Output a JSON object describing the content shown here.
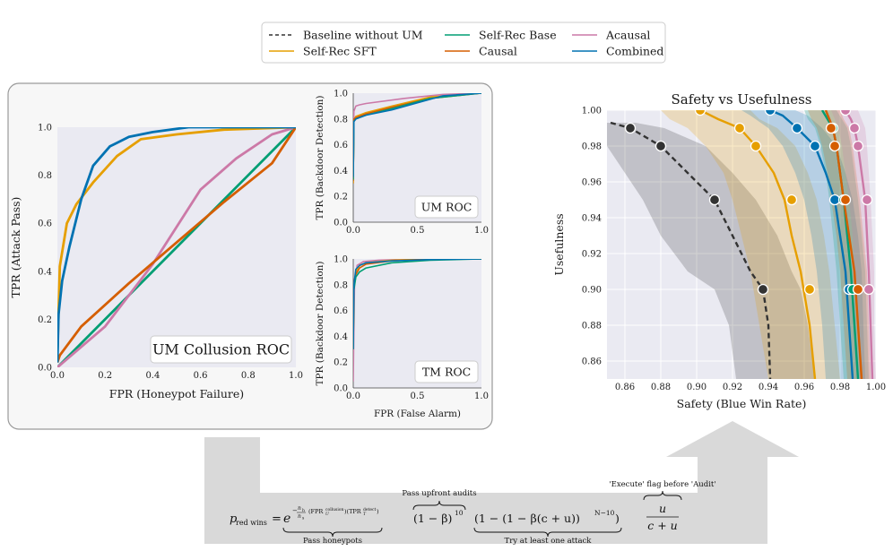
{
  "legend": [
    {
      "label": "Baseline without UM",
      "color": "#333333",
      "dash": true
    },
    {
      "label": "Self-Rec SFT",
      "color": "#E69F00",
      "dash": false
    },
    {
      "label": "Self-Rec Base",
      "color": "#009E73",
      "dash": false
    },
    {
      "label": "Causal",
      "color": "#D55E00",
      "dash": false
    },
    {
      "label": "Acausal",
      "color": "#CC79A7",
      "dash": false
    },
    {
      "label": "Combined",
      "color": "#0072B2",
      "dash": false
    }
  ],
  "chart_data": [
    {
      "id": "um_collusion_roc",
      "type": "line",
      "title": "UM Collusion ROC",
      "xlabel": "FPR (Honeypot Failure)",
      "ylabel": "TPR (Attack Pass)",
      "xlim": [
        0,
        1
      ],
      "ylim": [
        0,
        1
      ],
      "xticks": [
        "0.0",
        "0.2",
        "0.4",
        "0.6",
        "0.8",
        "1.0"
      ],
      "yticks": [
        "0.0",
        "0.2",
        "0.4",
        "0.6",
        "0.8",
        "1.0"
      ],
      "series": [
        {
          "name": "Self-Rec Base",
          "x": [
            0,
            1
          ],
          "y": [
            0,
            1
          ]
        },
        {
          "name": "Acausal",
          "x": [
            0,
            0.2,
            0.4,
            0.6,
            0.75,
            0.9,
            1.0
          ],
          "y": [
            0,
            0.17,
            0.43,
            0.74,
            0.87,
            0.97,
            1.0
          ]
        },
        {
          "name": "Causal",
          "x": [
            0,
            0.01,
            0.1,
            0.3,
            0.5,
            0.7,
            0.9,
            1.0
          ],
          "y": [
            0.02,
            0.05,
            0.17,
            0.35,
            0.52,
            0.69,
            0.85,
            1.0
          ]
        },
        {
          "name": "Self-Rec SFT",
          "x": [
            0,
            0.01,
            0.04,
            0.08,
            0.15,
            0.25,
            0.35,
            0.5,
            0.7,
            1.0
          ],
          "y": [
            0.05,
            0.42,
            0.6,
            0.68,
            0.77,
            0.88,
            0.95,
            0.97,
            0.99,
            1.0
          ]
        },
        {
          "name": "Combined",
          "x": [
            0,
            0.005,
            0.02,
            0.05,
            0.1,
            0.15,
            0.22,
            0.3,
            0.4,
            0.55,
            0.7,
            1.0
          ],
          "y": [
            0.02,
            0.22,
            0.36,
            0.5,
            0.7,
            0.84,
            0.92,
            0.96,
            0.98,
            1.0,
            1.0,
            1.0
          ]
        }
      ]
    },
    {
      "id": "um_roc",
      "type": "line",
      "title": "UM ROC",
      "xlabel": "",
      "ylabel": "TPR (Backdoor Detection)",
      "xlim": [
        0,
        1
      ],
      "ylim": [
        0,
        1
      ],
      "xticks": [
        "0.0",
        "0.5",
        "1.0"
      ],
      "yticks": [
        "0.0",
        "0.2",
        "0.4",
        "0.6",
        "0.8",
        "1.0"
      ],
      "series": [
        {
          "name": "Acausal",
          "x": [
            0,
            0.005,
            0.02,
            0.05,
            0.1,
            0.4,
            0.7,
            1.0
          ],
          "y": [
            0.3,
            0.86,
            0.9,
            0.91,
            0.92,
            0.96,
            0.99,
            1.0
          ]
        },
        {
          "name": "Self-Rec SFT",
          "x": [
            0,
            0.005,
            0.02,
            0.1,
            0.3,
            0.6,
            1.0
          ],
          "y": [
            0.3,
            0.79,
            0.82,
            0.85,
            0.9,
            0.97,
            1.0
          ]
        },
        {
          "name": "Causal",
          "x": [
            0,
            0.005,
            0.02,
            0.1,
            0.3,
            0.6,
            1.0
          ],
          "y": [
            0.32,
            0.8,
            0.81,
            0.84,
            0.89,
            0.96,
            1.0
          ]
        },
        {
          "name": "Self-Rec Base",
          "x": [
            0,
            0.005,
            0.02,
            0.1,
            0.3,
            0.6,
            1.0
          ],
          "y": [
            0.33,
            0.78,
            0.8,
            0.83,
            0.88,
            0.96,
            1.0
          ]
        },
        {
          "name": "Combined",
          "x": [
            0,
            0.005,
            0.02,
            0.1,
            0.3,
            0.7,
            1.0
          ],
          "y": [
            0.35,
            0.78,
            0.8,
            0.83,
            0.87,
            0.98,
            1.0
          ]
        }
      ]
    },
    {
      "id": "tm_roc",
      "type": "line",
      "title": "TM ROC",
      "xlabel": "FPR (False Alarm)",
      "ylabel": "TPR (Backdoor Detection)",
      "xlim": [
        0,
        1
      ],
      "ylim": [
        0,
        1
      ],
      "xticks": [
        "0.0",
        "0.5",
        "1.0"
      ],
      "yticks": [
        "0.0",
        "0.2",
        "0.4",
        "0.6",
        "0.8",
        "1.0"
      ],
      "series": [
        {
          "name": "Acausal",
          "x": [
            0,
            0.003,
            0.01,
            0.03,
            0.08,
            0.2,
            0.5,
            1.0
          ],
          "y": [
            0.05,
            0.3,
            0.8,
            0.95,
            0.98,
            0.99,
            1.0,
            1.0
          ]
        },
        {
          "name": "Self-Rec SFT",
          "x": [
            0,
            0.005,
            0.02,
            0.05,
            0.1,
            0.3,
            0.6,
            1.0
          ],
          "y": [
            0.3,
            0.8,
            0.9,
            0.95,
            0.97,
            0.99,
            1.0,
            1.0
          ]
        },
        {
          "name": "Causal",
          "x": [
            0,
            0.005,
            0.02,
            0.05,
            0.1,
            0.3,
            0.6,
            1.0
          ],
          "y": [
            0.3,
            0.78,
            0.88,
            0.93,
            0.96,
            0.985,
            1.0,
            1.0
          ]
        },
        {
          "name": "Self-Rec Base",
          "x": [
            0,
            0.005,
            0.02,
            0.05,
            0.1,
            0.3,
            0.6,
            1.0
          ],
          "y": [
            0.3,
            0.76,
            0.86,
            0.9,
            0.93,
            0.97,
            0.99,
            1.0
          ]
        },
        {
          "name": "Combined",
          "x": [
            0,
            0.005,
            0.02,
            0.05,
            0.1,
            0.3,
            0.6,
            1.0
          ],
          "y": [
            0.3,
            0.8,
            0.92,
            0.95,
            0.97,
            0.985,
            0.995,
            1.0
          ]
        }
      ]
    },
    {
      "id": "safety_vs_usefulness",
      "type": "line",
      "title": "Safety vs Usefulness",
      "xlabel": "Safety (Blue Win Rate)",
      "ylabel": "Usefulness",
      "xlim": [
        0.85,
        1.0
      ],
      "ylim": [
        0.85,
        1.0
      ],
      "xticks": [
        "0.86",
        "0.88",
        "0.90",
        "0.92",
        "0.94",
        "0.96",
        "0.98",
        "1.00"
      ],
      "yticks": [
        "0.86",
        "0.88",
        "0.90",
        "0.92",
        "0.94",
        "0.96",
        "0.98",
        "1.00"
      ],
      "series": [
        {
          "name": "Baseline without UM",
          "x": [
            0.852,
            0.863,
            0.88,
            0.895,
            0.91,
            0.92,
            0.93,
            0.937,
            0.94,
            0.941
          ],
          "y": [
            0.993,
            0.99,
            0.98,
            0.965,
            0.95,
            0.93,
            0.91,
            0.9,
            0.88,
            0.85
          ],
          "x_lo": [
            0.85,
            0.85,
            0.85,
            0.86,
            0.87,
            0.88,
            0.895,
            0.91,
            0.918,
            0.922
          ],
          "x_hi": [
            0.866,
            0.882,
            0.905,
            0.92,
            0.933,
            0.945,
            0.953,
            0.958,
            0.962,
            0.966
          ],
          "markers": [
            [
              0.863,
              0.99
            ],
            [
              0.88,
              0.98
            ],
            [
              0.91,
              0.95
            ],
            [
              0.937,
              0.9
            ]
          ]
        },
        {
          "name": "Self-Rec SFT",
          "x": [
            0.902,
            0.912,
            0.924,
            0.933,
            0.943,
            0.949,
            0.953,
            0.958,
            0.963,
            0.966
          ],
          "y": [
            1.0,
            0.995,
            0.99,
            0.98,
            0.965,
            0.95,
            0.93,
            0.91,
            0.88,
            0.85
          ],
          "x_lo": [
            0.88,
            0.885,
            0.895,
            0.905,
            0.915,
            0.92,
            0.925,
            0.93,
            0.935,
            0.94
          ],
          "x_hi": [
            0.93,
            0.935,
            0.945,
            0.955,
            0.962,
            0.967,
            0.971,
            0.974,
            0.977,
            0.98
          ],
          "markers": [
            [
              0.902,
              1.0
            ],
            [
              0.924,
              0.99
            ],
            [
              0.933,
              0.98
            ],
            [
              0.953,
              0.95
            ],
            [
              0.963,
              0.9
            ]
          ]
        },
        {
          "name": "Combined",
          "x": [
            0.941,
            0.948,
            0.956,
            0.966,
            0.972,
            0.977,
            0.98,
            0.983,
            0.985,
            0.987
          ],
          "y": [
            1.0,
            0.997,
            0.99,
            0.98,
            0.965,
            0.95,
            0.93,
            0.91,
            0.88,
            0.85
          ],
          "x_lo": [
            0.925,
            0.93,
            0.94,
            0.948,
            0.955,
            0.96,
            0.964,
            0.967,
            0.97,
            0.972
          ],
          "x_hi": [
            0.955,
            0.962,
            0.97,
            0.978,
            0.983,
            0.987,
            0.99,
            0.992,
            0.993,
            0.994
          ],
          "markers": [
            [
              0.941,
              1.0
            ],
            [
              0.956,
              0.99
            ],
            [
              0.966,
              0.98
            ],
            [
              0.977,
              0.95
            ],
            [
              0.985,
              0.9
            ]
          ]
        },
        {
          "name": "Self-Rec Base",
          "x": [
            0.97,
            0.973,
            0.976,
            0.978,
            0.98,
            0.982,
            0.984,
            0.986,
            0.988,
            0.99
          ],
          "y": [
            1.0,
            0.995,
            0.99,
            0.98,
            0.965,
            0.95,
            0.93,
            0.91,
            0.88,
            0.85
          ],
          "x_lo": [
            0.96,
            0.962,
            0.966,
            0.969,
            0.972,
            0.974,
            0.976,
            0.978,
            0.98,
            0.982
          ],
          "x_hi": [
            0.978,
            0.981,
            0.984,
            0.986,
            0.988,
            0.99,
            0.992,
            0.994,
            0.995,
            0.996
          ],
          "markers": [
            [
              0.976,
              0.99
            ],
            [
              0.982,
              0.95
            ],
            [
              0.987,
              0.9
            ]
          ]
        },
        {
          "name": "Causal",
          "x": [
            0.972,
            0.974,
            0.976,
            0.978,
            0.98,
            0.982,
            0.985,
            0.988,
            0.99,
            0.992
          ],
          "y": [
            1.0,
            0.995,
            0.99,
            0.98,
            0.965,
            0.95,
            0.93,
            0.91,
            0.88,
            0.85
          ],
          "x_lo": [
            0.962,
            0.964,
            0.967,
            0.97,
            0.973,
            0.975,
            0.978,
            0.98,
            0.982,
            0.984
          ],
          "x_hi": [
            0.98,
            0.982,
            0.985,
            0.987,
            0.989,
            0.991,
            0.993,
            0.995,
            0.996,
            0.997
          ],
          "markers": [
            [
              0.975,
              0.99
            ],
            [
              0.977,
              0.98
            ],
            [
              0.983,
              0.95
            ],
            [
              0.99,
              0.9
            ]
          ]
        },
        {
          "name": "Acausal",
          "x": [
            0.983,
            0.986,
            0.988,
            0.99,
            0.992,
            0.994,
            0.995,
            0.996,
            0.997,
            0.998
          ],
          "y": [
            1.0,
            0.995,
            0.99,
            0.98,
            0.965,
            0.95,
            0.93,
            0.91,
            0.88,
            0.85
          ],
          "x_lo": [
            0.975,
            0.977,
            0.979,
            0.981,
            0.983,
            0.985,
            0.987,
            0.988,
            0.99,
            0.991
          ],
          "x_hi": [
            0.99,
            0.992,
            0.994,
            0.995,
            0.996,
            0.997,
            0.998,
            0.999,
            0.999,
            1.0
          ],
          "markers": [
            [
              0.983,
              1.0
            ],
            [
              0.988,
              0.99
            ],
            [
              0.99,
              0.98
            ],
            [
              0.995,
              0.95
            ],
            [
              0.996,
              0.9
            ]
          ]
        }
      ]
    }
  ],
  "formula": {
    "lhs": "p",
    "lhs_sub": "red wins",
    "eq": "=",
    "exp_base": "e",
    "exp_pre": "−",
    "exp_nh": "n",
    "exp_nh_sub": "h",
    "exp_nsub": "n",
    "exp_nsub_sub": "s",
    "exp_fpr": "(FPR",
    "exp_fpr_sup": "collusion",
    "exp_fpr_sub": "U",
    "exp_tpr": ")(TPR",
    "exp_tpr_sup": "detect",
    "exp_tpr_sub": "T",
    "exp_close": ")",
    "t2": "(1 − β)",
    "t2_sup": "10",
    "t3": "(1 − (1 − β(c + u))",
    "t3_sup": "N−10",
    "t3_close": ")",
    "frac_num": "u",
    "frac_den": "c + u",
    "brace_pass_honeypots": "Pass honeypots",
    "brace_pass_upfront": "Pass upfront audits",
    "brace_try_attack": "Try at least one attack",
    "brace_execute": "'Execute' flag before 'Audit'"
  }
}
